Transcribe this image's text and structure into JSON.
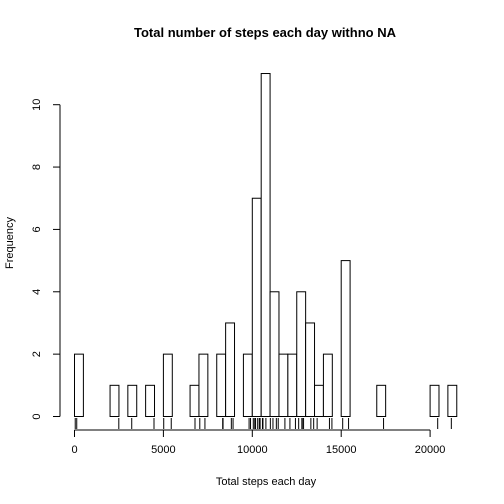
{
  "chart_data": {
    "type": "bar",
    "title": "Total number of steps each day withno NA",
    "xlabel": "Total steps each day",
    "ylabel": "Frequency",
    "xlim": [
      0,
      21500
    ],
    "ylim": [
      0,
      11
    ],
    "bin_width": 500,
    "x_ticks": [
      0,
      5000,
      10000,
      15000,
      20000
    ],
    "x_tick_labels": [
      "0",
      "5000",
      "10000",
      "15000",
      "20000"
    ],
    "y_ticks": [
      0,
      2,
      4,
      6,
      8,
      10
    ],
    "y_tick_labels": [
      "0",
      "2",
      "4",
      "6",
      "8",
      "10"
    ],
    "bins": [
      {
        "x0": 0,
        "x1": 500,
        "count": 2
      },
      {
        "x0": 2000,
        "x1": 2500,
        "count": 1
      },
      {
        "x0": 3000,
        "x1": 3500,
        "count": 1
      },
      {
        "x0": 4000,
        "x1": 4500,
        "count": 1
      },
      {
        "x0": 5000,
        "x1": 5500,
        "count": 2
      },
      {
        "x0": 6500,
        "x1": 7000,
        "count": 1
      },
      {
        "x0": 7000,
        "x1": 7500,
        "count": 2
      },
      {
        "x0": 8000,
        "x1": 8500,
        "count": 2
      },
      {
        "x0": 8500,
        "x1": 9000,
        "count": 3
      },
      {
        "x0": 9500,
        "x1": 10000,
        "count": 2
      },
      {
        "x0": 10000,
        "x1": 10500,
        "count": 7
      },
      {
        "x0": 10500,
        "x1": 11000,
        "count": 11
      },
      {
        "x0": 11000,
        "x1": 11500,
        "count": 4
      },
      {
        "x0": 11500,
        "x1": 12000,
        "count": 2
      },
      {
        "x0": 12000,
        "x1": 12500,
        "count": 2
      },
      {
        "x0": 12500,
        "x1": 13000,
        "count": 4
      },
      {
        "x0": 13000,
        "x1": 13500,
        "count": 3
      },
      {
        "x0": 13500,
        "x1": 14000,
        "count": 1
      },
      {
        "x0": 14000,
        "x1": 14500,
        "count": 2
      },
      {
        "x0": 15000,
        "x1": 15500,
        "count": 5
      },
      {
        "x0": 17000,
        "x1": 17500,
        "count": 1
      },
      {
        "x0": 20000,
        "x1": 20500,
        "count": 1
      },
      {
        "x0": 21000,
        "x1": 21500,
        "count": 1
      }
    ],
    "rug": [
      41,
      126,
      2492,
      3219,
      4472,
      5018,
      5441,
      6778,
      7047,
      7336,
      8334,
      8355,
      8821,
      8918,
      9819,
      9900,
      10056,
      10139,
      10183,
      10304,
      10395,
      10439,
      10571,
      10600,
      10765,
      11015,
      11162,
      11352,
      11458,
      11834,
      12116,
      12426,
      12608,
      12787,
      12811,
      12883,
      13294,
      13452,
      13646,
      14339,
      14478,
      15084,
      15414,
      17382,
      20427,
      21194
    ],
    "grid": false,
    "legend": "none"
  }
}
